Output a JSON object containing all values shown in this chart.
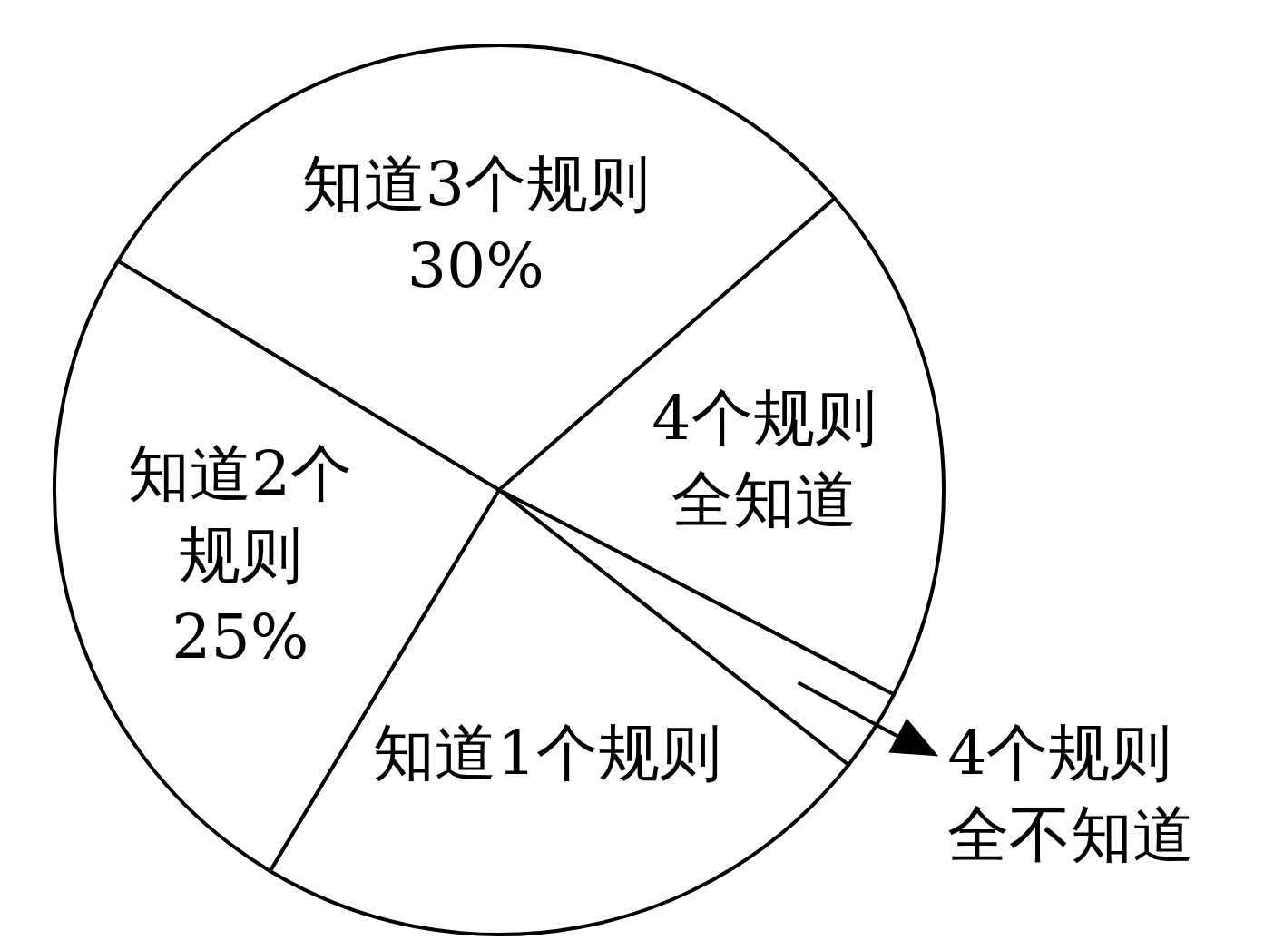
{
  "chart_data": {
    "type": "pie",
    "categories": [
      "知道3个规则",
      "4个规则全知道",
      "4个规则全不知道",
      "知道1个规则",
      "知道2个规则"
    ],
    "values": [
      30,
      19,
      3,
      23,
      25
    ],
    "value_labels": [
      "30%",
      null,
      null,
      null,
      "25%"
    ],
    "colors": [
      "#ffffff",
      "#ffffff",
      "#ffffff",
      "#ffffff",
      "#ffffff"
    ]
  }
}
